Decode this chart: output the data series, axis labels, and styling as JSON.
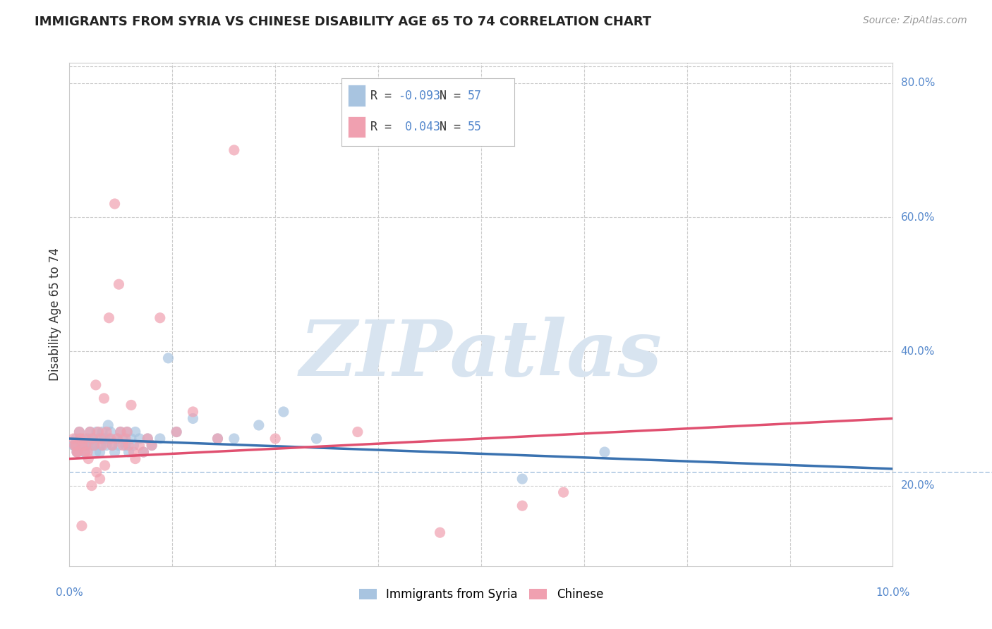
{
  "title": "IMMIGRANTS FROM SYRIA VS CHINESE DISABILITY AGE 65 TO 74 CORRELATION CHART",
  "source": "Source: ZipAtlas.com",
  "ylabel": "Disability Age 65 to 74",
  "legend1_label": "Immigrants from Syria",
  "legend2_label": "Chinese",
  "blue_color": "#a8c4e0",
  "pink_color": "#f0a0b0",
  "trend_blue_color": "#3a72b0",
  "trend_pink_color": "#e05070",
  "label_color": "#5588cc",
  "watermark": "ZIPatlas",
  "watermark_color": "#d8e4f0",
  "xlim": [
    0.0,
    10.0
  ],
  "ylim": [
    8.0,
    83.0
  ],
  "grid_color": "#cccccc",
  "background_color": "#ffffff",
  "blue_scatter_x": [
    0.05,
    0.08,
    0.1,
    0.12,
    0.15,
    0.18,
    0.2,
    0.22,
    0.25,
    0.28,
    0.3,
    0.32,
    0.35,
    0.38,
    0.4,
    0.42,
    0.45,
    0.48,
    0.5,
    0.52,
    0.55,
    0.58,
    0.6,
    0.62,
    0.65,
    0.68,
    0.7,
    0.72,
    0.75,
    0.78,
    0.8,
    0.85,
    0.9,
    0.95,
    1.0,
    1.1,
    1.2,
    1.3,
    1.5,
    1.8,
    2.0,
    2.3,
    2.6,
    3.0,
    0.06,
    0.09,
    0.13,
    0.16,
    0.19,
    0.23,
    0.27,
    0.33,
    0.37,
    0.43,
    0.47,
    5.5,
    6.5
  ],
  "blue_scatter_y": [
    26,
    27,
    25,
    28,
    26,
    25,
    27,
    26,
    28,
    27,
    26,
    25,
    27,
    26,
    28,
    27,
    26,
    27,
    28,
    26,
    25,
    27,
    26,
    28,
    27,
    26,
    28,
    25,
    27,
    26,
    28,
    27,
    25,
    27,
    26,
    27,
    39,
    28,
    30,
    27,
    27,
    29,
    31,
    27,
    26,
    25,
    27,
    26,
    25,
    27,
    26,
    28,
    25,
    27,
    29,
    21,
    25
  ],
  "pink_scatter_x": [
    0.05,
    0.08,
    0.1,
    0.12,
    0.15,
    0.18,
    0.2,
    0.22,
    0.25,
    0.28,
    0.3,
    0.32,
    0.35,
    0.38,
    0.4,
    0.42,
    0.45,
    0.48,
    0.5,
    0.52,
    0.55,
    0.58,
    0.6,
    0.62,
    0.65,
    0.68,
    0.7,
    0.72,
    0.75,
    0.78,
    0.8,
    0.85,
    0.9,
    0.95,
    1.0,
    1.1,
    1.3,
    1.5,
    1.8,
    0.06,
    0.09,
    0.13,
    0.16,
    0.19,
    0.23,
    0.27,
    0.33,
    0.37,
    0.43,
    2.0,
    2.5,
    3.5,
    4.5,
    5.5,
    6.0
  ],
  "pink_scatter_y": [
    27,
    26,
    25,
    28,
    14,
    27,
    26,
    25,
    28,
    27,
    26,
    35,
    28,
    27,
    26,
    33,
    28,
    45,
    27,
    26,
    62,
    27,
    50,
    28,
    26,
    27,
    28,
    26,
    32,
    25,
    24,
    26,
    25,
    27,
    26,
    45,
    28,
    31,
    27,
    26,
    25,
    27,
    26,
    25,
    24,
    20,
    22,
    21,
    23,
    70,
    27,
    28,
    13,
    17,
    19
  ],
  "blue_trend_x0": 0.0,
  "blue_trend_x1": 10.0,
  "blue_trend_y0": 27.0,
  "blue_trend_y1": 22.5,
  "pink_trend_x0": 0.0,
  "pink_trend_x1": 10.0,
  "pink_trend_y0": 24.0,
  "pink_trend_y1": 30.0,
  "dash_line_y": 22.0
}
